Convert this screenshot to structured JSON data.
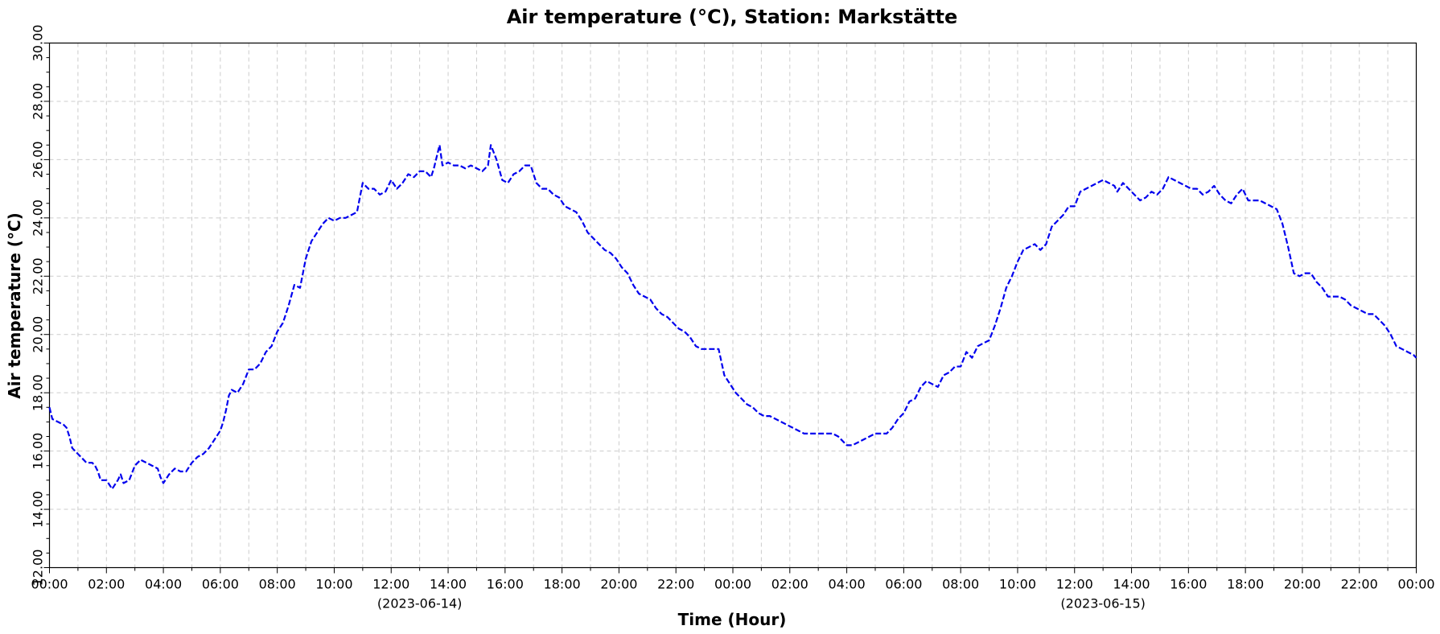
{
  "chart_data": {
    "type": "line",
    "title": "Air temperature (°C), Station: Markstätte",
    "xlabel": "Time (Hour)",
    "ylabel": "Air temperature (°C)",
    "ylim": [
      12,
      30
    ],
    "xlim_hours": [
      0,
      48
    ],
    "yticks": [
      "12.00",
      "14.00",
      "16.00",
      "18.00",
      "20.00",
      "22.00",
      "24.00",
      "26.00",
      "28.00",
      "30.00"
    ],
    "xticks": [
      "00:00",
      "02:00",
      "04:00",
      "06:00",
      "08:00",
      "10:00",
      "12:00",
      "14:00",
      "16:00",
      "18:00",
      "20:00",
      "22:00",
      "00:00",
      "02:00",
      "04:00",
      "06:00",
      "08:00",
      "10:00",
      "12:00",
      "14:00",
      "16:00",
      "18:00",
      "20:00",
      "22:00",
      "00:00"
    ],
    "date_labels": [
      {
        "hour": 13,
        "text": "(2023-06-14)"
      },
      {
        "hour": 37,
        "text": "(2023-06-15)"
      }
    ],
    "grid": true,
    "line_style": "dashed",
    "series": [
      {
        "color": "#0000ee",
        "points": [
          [
            0.0,
            17.5
          ],
          [
            0.1,
            17.1
          ],
          [
            0.3,
            17.0
          ],
          [
            0.5,
            16.9
          ],
          [
            0.6,
            16.8
          ],
          [
            0.7,
            16.5
          ],
          [
            0.8,
            16.1
          ],
          [
            1.0,
            15.9
          ],
          [
            1.1,
            15.8
          ],
          [
            1.3,
            15.6
          ],
          [
            1.5,
            15.6
          ],
          [
            1.6,
            15.5
          ],
          [
            1.7,
            15.3
          ],
          [
            1.8,
            15.0
          ],
          [
            2.0,
            15.0
          ],
          [
            2.2,
            14.7
          ],
          [
            2.4,
            15.0
          ],
          [
            2.5,
            15.2
          ],
          [
            2.6,
            14.9
          ],
          [
            2.8,
            15.0
          ],
          [
            3.0,
            15.5
          ],
          [
            3.2,
            15.7
          ],
          [
            3.4,
            15.6
          ],
          [
            3.6,
            15.5
          ],
          [
            3.8,
            15.4
          ],
          [
            3.9,
            15.1
          ],
          [
            4.0,
            14.9
          ],
          [
            4.2,
            15.2
          ],
          [
            4.4,
            15.4
          ],
          [
            4.6,
            15.3
          ],
          [
            4.8,
            15.3
          ],
          [
            5.0,
            15.6
          ],
          [
            5.2,
            15.8
          ],
          [
            5.4,
            15.9
          ],
          [
            5.6,
            16.1
          ],
          [
            5.8,
            16.4
          ],
          [
            6.0,
            16.7
          ],
          [
            6.1,
            17.0
          ],
          [
            6.2,
            17.4
          ],
          [
            6.3,
            17.9
          ],
          [
            6.4,
            18.1
          ],
          [
            6.6,
            18.0
          ],
          [
            6.8,
            18.3
          ],
          [
            7.0,
            18.8
          ],
          [
            7.2,
            18.8
          ],
          [
            7.4,
            19.0
          ],
          [
            7.6,
            19.4
          ],
          [
            7.8,
            19.6
          ],
          [
            8.0,
            20.1
          ],
          [
            8.2,
            20.4
          ],
          [
            8.4,
            21.0
          ],
          [
            8.6,
            21.7
          ],
          [
            8.8,
            21.6
          ],
          [
            9.0,
            22.6
          ],
          [
            9.2,
            23.2
          ],
          [
            9.4,
            23.5
          ],
          [
            9.6,
            23.8
          ],
          [
            9.8,
            24.0
          ],
          [
            10.0,
            23.9
          ],
          [
            10.2,
            24.0
          ],
          [
            10.4,
            24.0
          ],
          [
            10.6,
            24.1
          ],
          [
            10.8,
            24.2
          ],
          [
            11.0,
            25.2
          ],
          [
            11.2,
            25.0
          ],
          [
            11.4,
            25.0
          ],
          [
            11.6,
            24.8
          ],
          [
            11.8,
            24.9
          ],
          [
            12.0,
            25.3
          ],
          [
            12.2,
            25.0
          ],
          [
            12.4,
            25.2
          ],
          [
            12.6,
            25.5
          ],
          [
            12.8,
            25.4
          ],
          [
            13.0,
            25.6
          ],
          [
            13.2,
            25.6
          ],
          [
            13.4,
            25.4
          ],
          [
            13.5,
            25.7
          ],
          [
            13.7,
            26.5
          ],
          [
            13.8,
            25.8
          ],
          [
            14.0,
            25.9
          ],
          [
            14.2,
            25.8
          ],
          [
            14.4,
            25.8
          ],
          [
            14.6,
            25.7
          ],
          [
            14.8,
            25.8
          ],
          [
            15.0,
            25.7
          ],
          [
            15.2,
            25.6
          ],
          [
            15.4,
            25.8
          ],
          [
            15.5,
            26.5
          ],
          [
            15.7,
            26.0
          ],
          [
            15.9,
            25.3
          ],
          [
            16.1,
            25.2
          ],
          [
            16.3,
            25.5
          ],
          [
            16.5,
            25.6
          ],
          [
            16.7,
            25.8
          ],
          [
            16.9,
            25.8
          ],
          [
            17.1,
            25.2
          ],
          [
            17.3,
            25.0
          ],
          [
            17.5,
            25.0
          ],
          [
            17.7,
            24.8
          ],
          [
            17.9,
            24.7
          ],
          [
            18.1,
            24.4
          ],
          [
            18.3,
            24.3
          ],
          [
            18.5,
            24.2
          ],
          [
            18.7,
            23.9
          ],
          [
            18.9,
            23.5
          ],
          [
            19.1,
            23.3
          ],
          [
            19.3,
            23.1
          ],
          [
            19.5,
            22.9
          ],
          [
            19.7,
            22.8
          ],
          [
            19.9,
            22.6
          ],
          [
            20.1,
            22.3
          ],
          [
            20.3,
            22.1
          ],
          [
            20.5,
            21.7
          ],
          [
            20.7,
            21.4
          ],
          [
            20.9,
            21.3
          ],
          [
            21.1,
            21.2
          ],
          [
            21.3,
            20.9
          ],
          [
            21.5,
            20.7
          ],
          [
            21.7,
            20.6
          ],
          [
            21.9,
            20.4
          ],
          [
            22.1,
            20.2
          ],
          [
            22.3,
            20.1
          ],
          [
            22.5,
            19.9
          ],
          [
            22.7,
            19.6
          ],
          [
            22.9,
            19.5
          ],
          [
            23.1,
            19.5
          ],
          [
            23.3,
            19.5
          ],
          [
            23.5,
            19.5
          ],
          [
            23.7,
            18.6
          ],
          [
            23.9,
            18.3
          ],
          [
            24.1,
            18.0
          ],
          [
            24.3,
            17.8
          ],
          [
            24.5,
            17.6
          ],
          [
            24.7,
            17.5
          ],
          [
            24.9,
            17.3
          ],
          [
            25.1,
            17.2
          ],
          [
            25.3,
            17.2
          ],
          [
            25.5,
            17.1
          ],
          [
            25.7,
            17.0
          ],
          [
            25.9,
            16.9
          ],
          [
            26.1,
            16.8
          ],
          [
            26.3,
            16.7
          ],
          [
            26.5,
            16.6
          ],
          [
            26.7,
            16.6
          ],
          [
            26.9,
            16.6
          ],
          [
            27.1,
            16.6
          ],
          [
            27.3,
            16.6
          ],
          [
            27.5,
            16.6
          ],
          [
            27.7,
            16.5
          ],
          [
            27.9,
            16.3
          ],
          [
            28.0,
            16.2
          ],
          [
            28.2,
            16.2
          ],
          [
            28.4,
            16.3
          ],
          [
            28.6,
            16.4
          ],
          [
            28.8,
            16.5
          ],
          [
            29.0,
            16.6
          ],
          [
            29.2,
            16.6
          ],
          [
            29.4,
            16.6
          ],
          [
            29.6,
            16.8
          ],
          [
            29.8,
            17.1
          ],
          [
            30.0,
            17.3
          ],
          [
            30.2,
            17.7
          ],
          [
            30.4,
            17.8
          ],
          [
            30.6,
            18.2
          ],
          [
            30.8,
            18.4
          ],
          [
            31.0,
            18.3
          ],
          [
            31.2,
            18.2
          ],
          [
            31.4,
            18.6
          ],
          [
            31.6,
            18.7
          ],
          [
            31.8,
            18.9
          ],
          [
            32.0,
            18.9
          ],
          [
            32.2,
            19.4
          ],
          [
            32.4,
            19.2
          ],
          [
            32.6,
            19.6
          ],
          [
            32.8,
            19.7
          ],
          [
            33.0,
            19.8
          ],
          [
            33.2,
            20.3
          ],
          [
            33.4,
            20.9
          ],
          [
            33.6,
            21.6
          ],
          [
            33.8,
            22.0
          ],
          [
            34.0,
            22.5
          ],
          [
            34.2,
            22.9
          ],
          [
            34.4,
            23.0
          ],
          [
            34.6,
            23.1
          ],
          [
            34.8,
            22.9
          ],
          [
            35.0,
            23.1
          ],
          [
            35.2,
            23.7
          ],
          [
            35.4,
            23.9
          ],
          [
            35.6,
            24.1
          ],
          [
            35.8,
            24.4
          ],
          [
            36.0,
            24.4
          ],
          [
            36.2,
            24.9
          ],
          [
            36.4,
            25.0
          ],
          [
            36.6,
            25.1
          ],
          [
            36.8,
            25.2
          ],
          [
            37.0,
            25.3
          ],
          [
            37.2,
            25.2
          ],
          [
            37.4,
            25.1
          ],
          [
            37.5,
            24.9
          ],
          [
            37.7,
            25.2
          ],
          [
            37.9,
            25.0
          ],
          [
            38.1,
            24.8
          ],
          [
            38.3,
            24.6
          ],
          [
            38.5,
            24.7
          ],
          [
            38.7,
            24.9
          ],
          [
            38.9,
            24.8
          ],
          [
            39.1,
            25.0
          ],
          [
            39.3,
            25.4
          ],
          [
            39.5,
            25.3
          ],
          [
            39.7,
            25.2
          ],
          [
            39.9,
            25.1
          ],
          [
            40.1,
            25.0
          ],
          [
            40.3,
            25.0
          ],
          [
            40.5,
            24.8
          ],
          [
            40.7,
            24.9
          ],
          [
            40.9,
            25.1
          ],
          [
            41.1,
            24.8
          ],
          [
            41.3,
            24.6
          ],
          [
            41.5,
            24.5
          ],
          [
            41.7,
            24.8
          ],
          [
            41.9,
            25.0
          ],
          [
            42.1,
            24.6
          ],
          [
            42.3,
            24.6
          ],
          [
            42.5,
            24.6
          ],
          [
            42.7,
            24.5
          ],
          [
            42.9,
            24.4
          ],
          [
            43.1,
            24.3
          ],
          [
            43.3,
            23.8
          ],
          [
            43.5,
            23.0
          ],
          [
            43.7,
            22.1
          ],
          [
            43.9,
            22.0
          ],
          [
            44.1,
            22.1
          ],
          [
            44.3,
            22.1
          ],
          [
            44.5,
            21.8
          ],
          [
            44.7,
            21.6
          ],
          [
            44.9,
            21.3
          ],
          [
            45.1,
            21.3
          ],
          [
            45.3,
            21.3
          ],
          [
            45.5,
            21.2
          ],
          [
            45.7,
            21.0
          ],
          [
            45.9,
            20.9
          ],
          [
            46.1,
            20.8
          ],
          [
            46.3,
            20.7
          ],
          [
            46.5,
            20.7
          ],
          [
            46.7,
            20.5
          ],
          [
            46.9,
            20.3
          ],
          [
            47.1,
            20.0
          ],
          [
            47.3,
            19.6
          ],
          [
            47.5,
            19.5
          ],
          [
            47.7,
            19.4
          ],
          [
            47.9,
            19.3
          ],
          [
            48.0,
            19.2
          ]
        ]
      }
    ]
  }
}
